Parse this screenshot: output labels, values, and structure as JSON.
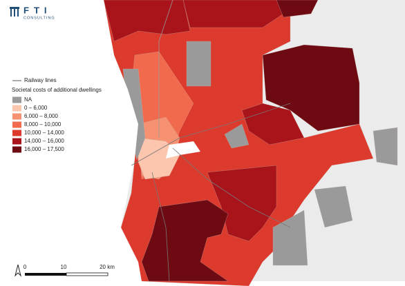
{
  "logo": {
    "name": "FTI",
    "subtitle": "CONSULTING"
  },
  "legend": {
    "railway": "Railway lines",
    "title": "Societal costs of additional dwellings",
    "items": [
      {
        "label": "NA",
        "color": "#9a9a9a"
      },
      {
        "label": "0 – 6,000",
        "color": "#fcc5ad"
      },
      {
        "label": "6,000 – 8,000",
        "color": "#f69272"
      },
      {
        "label": "8,000 – 10,000",
        "color": "#f26a4d"
      },
      {
        "label": "10,000 – 14,000",
        "color": "#dc3a2c"
      },
      {
        "label": "14,000 – 16,000",
        "color": "#a8141a"
      },
      {
        "label": "16,000 – 17,500",
        "color": "#6e0a12"
      }
    ]
  },
  "scale_bar": {
    "labels": [
      "0",
      "10",
      "20 km"
    ]
  }
}
